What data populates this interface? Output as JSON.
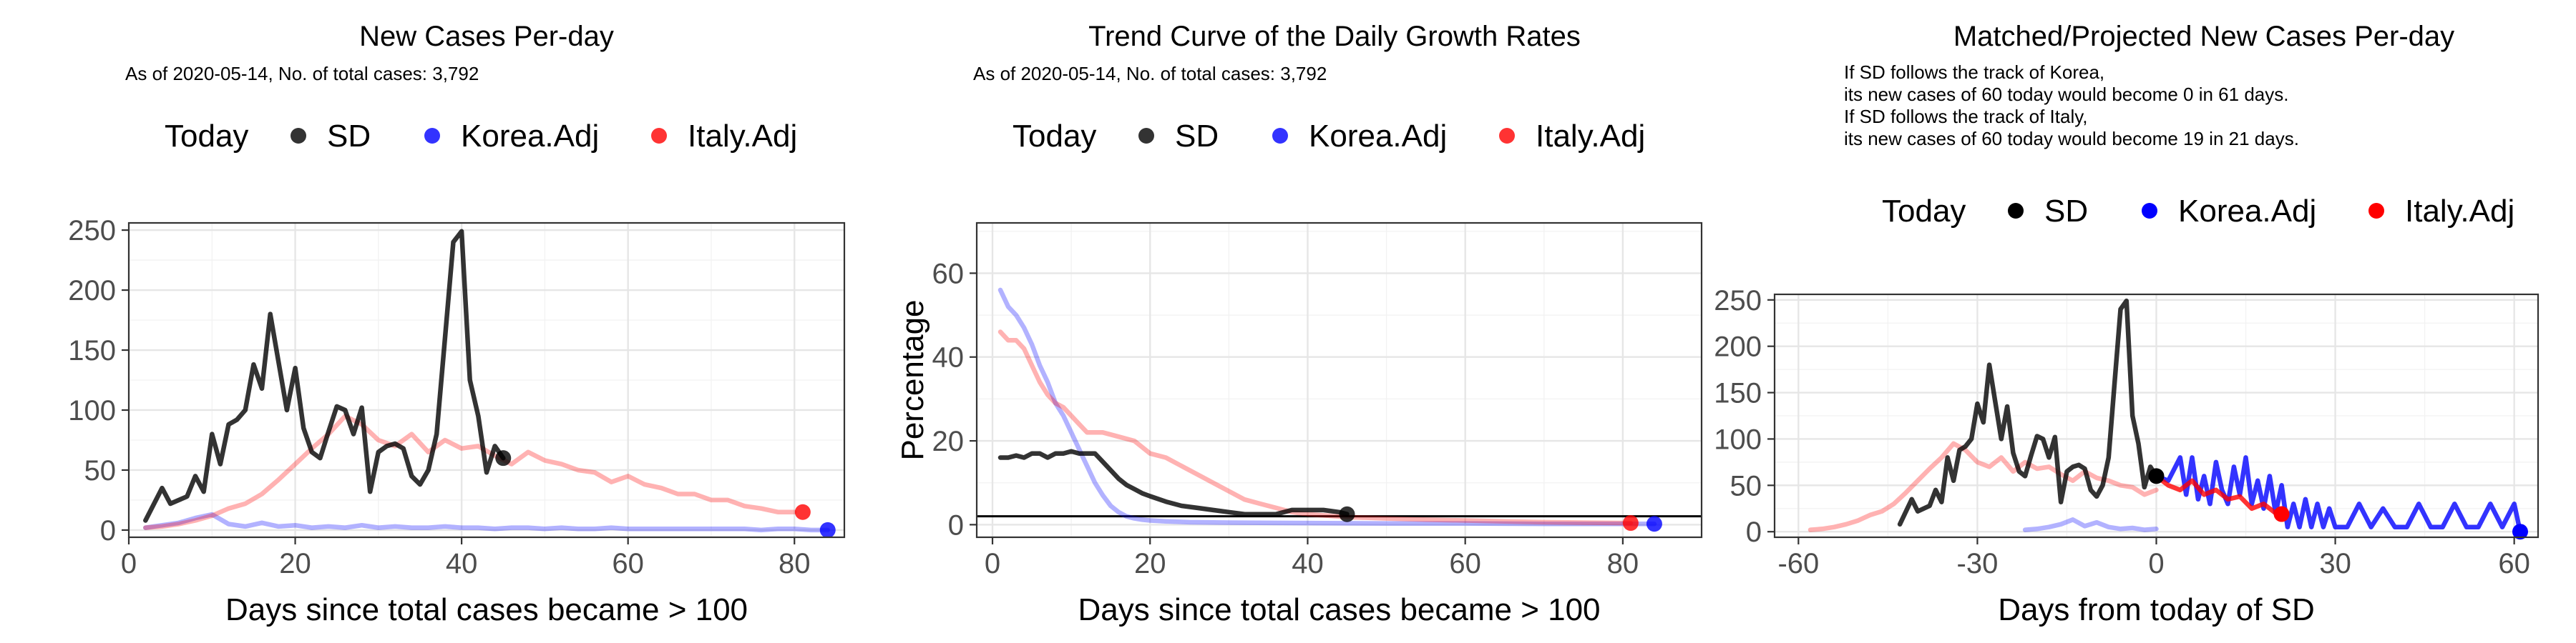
{
  "colors": {
    "sd": "#000000",
    "korea": "#0000ff",
    "italy": "#ff0000"
  },
  "legend_labels": {
    "title": "Today",
    "sd": "SD",
    "korea": "Korea.Adj",
    "italy": "Italy.Adj"
  },
  "chart_data": [
    {
      "type": "line",
      "title": "New Cases Per-day",
      "subtitle": "As of 2020-05-14, No. of total cases: 3,792",
      "xlabel": "Days since total cases became > 100",
      "ylabel": "",
      "xlim": [
        0,
        86
      ],
      "ylim": [
        -6,
        256
      ],
      "xticks": [
        0,
        20,
        40,
        60,
        80
      ],
      "yticks": [
        0,
        50,
        100,
        150,
        200,
        250
      ],
      "legend": "top",
      "grid": true,
      "series": [
        {
          "name": "SD",
          "color": "#000000",
          "alpha": 0.8,
          "x": [
            2,
            4,
            5,
            7,
            8,
            9,
            10,
            11,
            12,
            13,
            14,
            15,
            16,
            17,
            18,
            19,
            20,
            21,
            22,
            23,
            24,
            25,
            26,
            27,
            28,
            29,
            30,
            31,
            32,
            33,
            34,
            35,
            36,
            37,
            38,
            39,
            40,
            41,
            42,
            43,
            44,
            45
          ],
          "y": [
            8,
            35,
            22,
            28,
            45,
            32,
            80,
            55,
            88,
            92,
            100,
            138,
            118,
            180,
            140,
            100,
            135,
            85,
            65,
            60,
            82,
            103,
            100,
            80,
            102,
            32,
            65,
            70,
            72,
            68,
            45,
            38,
            50,
            80,
            160,
            240,
            249,
            125,
            95,
            48,
            70,
            60
          ]
        },
        {
          "name": "Korea.Adj",
          "color": "#0000ff",
          "alpha": 0.3,
          "x": [
            2,
            4,
            6,
            8,
            10,
            12,
            14,
            16,
            18,
            20,
            22,
            24,
            26,
            28,
            30,
            32,
            34,
            36,
            38,
            40,
            42,
            44,
            46,
            48,
            50,
            52,
            54,
            56,
            58,
            60,
            62,
            64,
            66,
            68,
            70,
            72,
            74,
            76,
            78,
            80,
            82,
            84
          ],
          "y": [
            2,
            4,
            6,
            10,
            13,
            5,
            3,
            6,
            3,
            4,
            2,
            3,
            2,
            4,
            2,
            3,
            2,
            2,
            3,
            2,
            2,
            1,
            2,
            2,
            1,
            2,
            1,
            1,
            2,
            1,
            1,
            1,
            1,
            1,
            1,
            1,
            1,
            0,
            1,
            1,
            0,
            0
          ]
        },
        {
          "name": "Italy.Adj",
          "color": "#ff0000",
          "alpha": 0.3,
          "x": [
            2,
            4,
            6,
            8,
            10,
            12,
            14,
            16,
            18,
            20,
            22,
            24,
            26,
            28,
            30,
            32,
            34,
            36,
            38,
            40,
            42,
            44,
            46,
            48,
            50,
            52,
            54,
            56,
            58,
            60,
            62,
            64,
            66,
            68,
            70,
            72,
            74,
            76,
            78,
            80
          ],
          "y": [
            2,
            3,
            5,
            8,
            12,
            18,
            22,
            30,
            42,
            55,
            68,
            80,
            95,
            88,
            75,
            70,
            80,
            65,
            75,
            68,
            70,
            62,
            55,
            65,
            58,
            55,
            50,
            48,
            40,
            45,
            38,
            35,
            30,
            30,
            25,
            25,
            20,
            18,
            15,
            15
          ]
        }
      ],
      "today_points": [
        {
          "name": "SD",
          "x": 45,
          "y": 60
        },
        {
          "name": "Korea.Adj",
          "x": 84,
          "y": 0
        },
        {
          "name": "Italy.Adj",
          "x": 81,
          "y": 15
        }
      ]
    },
    {
      "type": "line",
      "title": "Trend Curve of the Daily Growth Rates",
      "subtitle": "As of 2020-05-14, No. of total cases: 3,792",
      "xlabel": "Days since total cases became > 100",
      "ylabel": "Percentage",
      "xlim": [
        -2,
        90
      ],
      "ylim": [
        -3,
        72
      ],
      "xticks": [
        0,
        20,
        40,
        60,
        80
      ],
      "yticks": [
        0,
        20,
        40,
        60
      ],
      "legend": "top",
      "grid": true,
      "hline": 2,
      "series": [
        {
          "name": "SD",
          "color": "#000000",
          "alpha": 0.8,
          "x": [
            1,
            2,
            3,
            4,
            5,
            6,
            7,
            8,
            9,
            10,
            11,
            12,
            13,
            14,
            15,
            16,
            17,
            18,
            19,
            20,
            22,
            24,
            26,
            28,
            30,
            32,
            34,
            36,
            38,
            40,
            42,
            44,
            45
          ],
          "y": [
            16,
            16,
            16.5,
            16,
            17,
            17,
            16,
            17,
            17,
            17.5,
            17,
            17,
            17,
            15,
            13,
            11,
            9.5,
            8.5,
            7.5,
            6.8,
            5.5,
            4.5,
            4,
            3.5,
            3,
            2.5,
            2.5,
            2.5,
            3.5,
            3.5,
            3.5,
            3,
            2.5
          ]
        },
        {
          "name": "Korea.Adj",
          "color": "#0000ff",
          "alpha": 0.3,
          "x": [
            1,
            2,
            3,
            4,
            5,
            6,
            7,
            8,
            9,
            10,
            11,
            12,
            13,
            14,
            15,
            16,
            17,
            18,
            19,
            20,
            22,
            25,
            30,
            40,
            50,
            60,
            70,
            80,
            84
          ],
          "y": [
            56,
            52,
            50,
            47,
            43,
            38,
            34,
            29,
            26,
            22,
            18,
            14,
            10,
            7,
            4.5,
            3,
            2,
            1.5,
            1.2,
            1,
            0.8,
            0.6,
            0.5,
            0.4,
            0.3,
            0.3,
            0.2,
            0.2,
            0.2
          ]
        },
        {
          "name": "Italy.Adj",
          "color": "#ff0000",
          "alpha": 0.3,
          "x": [
            1,
            2,
            3,
            4,
            5,
            6,
            7,
            8,
            9,
            10,
            11,
            12,
            14,
            16,
            18,
            20,
            22,
            24,
            26,
            28,
            30,
            32,
            34,
            36,
            38,
            40,
            45,
            50,
            55,
            60,
            65,
            70,
            75,
            81
          ],
          "y": [
            46,
            44,
            44,
            42,
            38,
            34,
            31,
            29,
            28,
            26,
            24,
            22,
            22,
            21,
            20,
            17,
            16,
            14,
            12,
            10,
            8,
            6,
            5,
            4,
            3,
            2.5,
            1.8,
            1.5,
            1.2,
            1,
            0.8,
            0.6,
            0.5,
            0.4
          ]
        }
      ],
      "today_points": [
        {
          "name": "SD",
          "x": 45,
          "y": 2.5
        },
        {
          "name": "Korea.Adj",
          "x": 84,
          "y": 0.2
        },
        {
          "name": "Italy.Adj",
          "x": 81,
          "y": 0.4
        }
      ]
    },
    {
      "type": "line",
      "title": "Matched/Projected New Cases Per-day",
      "notes": [
        "If SD follows the track of Korea,",
        "its new cases of 60 today would become 0 in 61 days.",
        "If SD follows the track of Italy,",
        "its new cases of 60 today would become 19 in 21 days."
      ],
      "xlabel": "Days from today of SD",
      "ylabel": "",
      "xlim": [
        -64,
        64
      ],
      "ylim": [
        -6,
        256
      ],
      "xticks": [
        -60,
        -30,
        0,
        30,
        60
      ],
      "xticklabels": [
        "-60",
        "-30",
        "0",
        "30",
        "60"
      ],
      "yticks": [
        0,
        50,
        100,
        150,
        200,
        250
      ],
      "legend": "top",
      "grid": true,
      "series": [
        {
          "name": "SD",
          "color": "#000000",
          "alpha": 0.8,
          "x": [
            -43,
            -41,
            -40,
            -38,
            -37,
            -36,
            -35,
            -34,
            -33,
            -32,
            -31,
            -30,
            -29,
            -28,
            -27,
            -26,
            -25,
            -24,
            -23,
            -22,
            -21,
            -20,
            -19,
            -18,
            -17,
            -16,
            -15,
            -14,
            -13,
            -12,
            -11,
            -10,
            -9,
            -8,
            -7,
            -6,
            -5,
            -4,
            -3,
            -2,
            -1,
            0
          ],
          "y": [
            8,
            35,
            22,
            28,
            45,
            32,
            80,
            55,
            88,
            92,
            100,
            138,
            118,
            180,
            140,
            100,
            135,
            85,
            65,
            60,
            82,
            103,
            100,
            80,
            102,
            32,
            65,
            70,
            72,
            68,
            45,
            38,
            50,
            80,
            160,
            240,
            249,
            125,
            95,
            48,
            70,
            60
          ]
        },
        {
          "name": "Korea.Adj",
          "color": "#0000ff",
          "alpha": 0.3,
          "x": [
            -22,
            -20,
            -18,
            -16,
            -14,
            -12,
            -10,
            -8,
            -6,
            -4,
            -2,
            0
          ],
          "y": [
            2,
            3,
            5,
            8,
            13,
            6,
            10,
            5,
            3,
            4,
            2,
            3
          ]
        },
        {
          "name": "Italy.Adj",
          "color": "#ff0000",
          "alpha": 0.3,
          "x": [
            -58,
            -56,
            -54,
            -52,
            -50,
            -48,
            -46,
            -44,
            -42,
            -40,
            -38,
            -36,
            -34,
            -32,
            -30,
            -28,
            -26,
            -24,
            -22,
            -20,
            -18,
            -16,
            -14,
            -12,
            -10,
            -8,
            -6,
            -4,
            -2,
            0
          ],
          "y": [
            2,
            3,
            5,
            8,
            12,
            18,
            22,
            30,
            42,
            55,
            68,
            80,
            95,
            88,
            75,
            70,
            80,
            65,
            75,
            68,
            70,
            62,
            55,
            65,
            58,
            55,
            50,
            48,
            40,
            45
          ]
        },
        {
          "name": "Korea.Adj projection",
          "color": "#0000ff",
          "alpha": 0.8,
          "x": [
            0,
            2,
            4,
            5,
            6,
            7,
            8,
            9,
            10,
            11,
            12,
            13,
            14,
            15,
            16,
            17,
            18,
            19,
            20,
            21,
            22,
            23,
            24,
            25,
            26,
            27,
            28,
            29,
            30,
            32,
            34,
            36,
            38,
            40,
            42,
            44,
            46,
            48,
            50,
            52,
            54,
            56,
            58,
            60,
            61
          ],
          "y": [
            60,
            55,
            80,
            40,
            80,
            35,
            60,
            30,
            75,
            45,
            30,
            70,
            40,
            80,
            30,
            55,
            25,
            60,
            20,
            50,
            5,
            30,
            5,
            35,
            5,
            30,
            5,
            25,
            5,
            5,
            30,
            5,
            25,
            5,
            5,
            30,
            5,
            5,
            30,
            5,
            5,
            30,
            5,
            30,
            0
          ]
        },
        {
          "name": "Italy.Adj projection",
          "color": "#ff0000",
          "alpha": 0.8,
          "x": [
            0,
            2,
            4,
            6,
            8,
            10,
            12,
            14,
            16,
            18,
            20,
            21
          ],
          "y": [
            60,
            50,
            45,
            55,
            40,
            45,
            35,
            38,
            25,
            30,
            20,
            19
          ]
        }
      ],
      "today_points": [
        {
          "name": "SD",
          "x": 0,
          "y": 60
        },
        {
          "name": "Korea.Adj",
          "x": 61,
          "y": 0
        },
        {
          "name": "Italy.Adj",
          "x": 21,
          "y": 19
        }
      ]
    }
  ]
}
